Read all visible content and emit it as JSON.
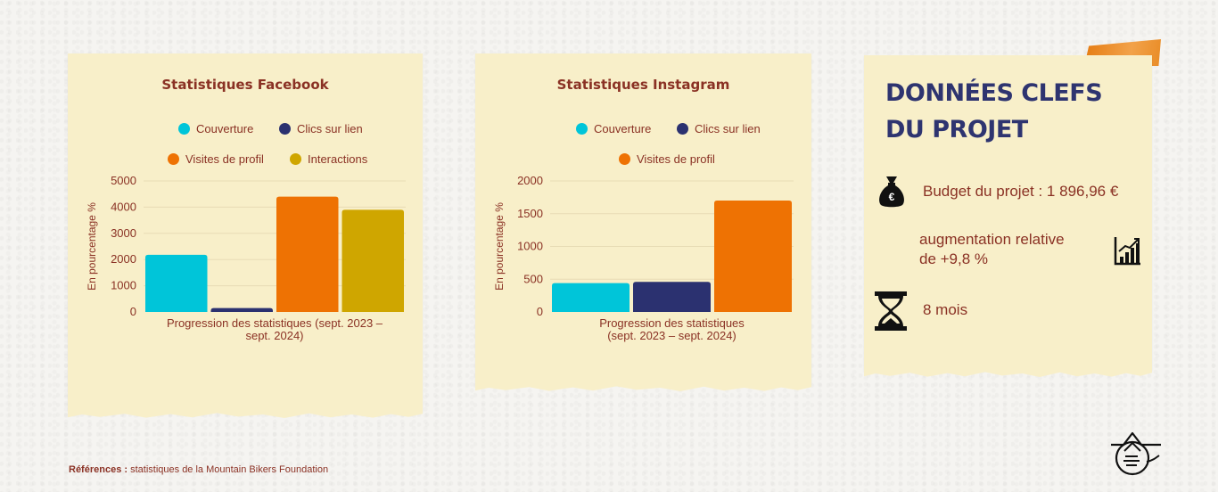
{
  "chart_data": [
    {
      "type": "bar",
      "title": "Statistiques Facebook",
      "categories": [
        "Progression des statistiques (sept. 2023 – sept. 2024)"
      ],
      "xlabel": "Progression des statistiques (sept. 2023 – sept. 2024)",
      "ylabel": "En pourcentage %",
      "ylim": [
        0,
        5000
      ],
      "yticks": [
        0,
        1000,
        2000,
        3000,
        4000,
        5000
      ],
      "legend_position": "top",
      "series": [
        {
          "name": "Couverture",
          "values": [
            2180
          ],
          "color": "#00c5d9"
        },
        {
          "name": "Clics sur lien",
          "values": [
            150
          ],
          "color": "#2b3170"
        },
        {
          "name": "Visites de profil",
          "values": [
            4400
          ],
          "color": "#ee7203"
        },
        {
          "name": "Interactions",
          "values": [
            3900
          ],
          "color": "#cfa600"
        }
      ]
    },
    {
      "type": "bar",
      "title": "Statistiques Instagram",
      "categories": [
        "Progression des statistiques (sept. 2023 – sept. 2024)"
      ],
      "xlabel": "Progression des statistiques (sept. 2023 – sept. 2024)",
      "ylabel": "En pourcentage %",
      "ylim": [
        0,
        2000
      ],
      "yticks": [
        0,
        500,
        1000,
        1500,
        2000
      ],
      "legend_position": "top",
      "series": [
        {
          "name": "Couverture",
          "values": [
            440
          ],
          "color": "#00c5d9"
        },
        {
          "name": "Clics sur lien",
          "values": [
            460
          ],
          "color": "#2b3170"
        },
        {
          "name": "Visites de profil",
          "values": [
            1700
          ],
          "color": "#ee7203"
        }
      ]
    }
  ],
  "key_facts": {
    "title_line1": "DONNÉES CLEFS",
    "title_line2": "DU PROJET",
    "budget": {
      "icon": "money-bag-euro-icon",
      "text": "Budget du projet : 1 896,96 €"
    },
    "increase": {
      "icon": "growth-chart-icon",
      "line1": "augmentation relative",
      "line2": "de +9,8 %"
    },
    "duration": {
      "icon": "hourglass-icon",
      "text": "8 mois"
    }
  },
  "references": {
    "label": "Références :",
    "text": "statistiques de la Mountain Bikers Foundation"
  },
  "logo": {
    "icon": "mountain-logo-icon"
  },
  "colors": {
    "title": "#8a3124",
    "heading": "#2e3470",
    "card": "#f8efc9",
    "tape": "#ee7f14"
  }
}
